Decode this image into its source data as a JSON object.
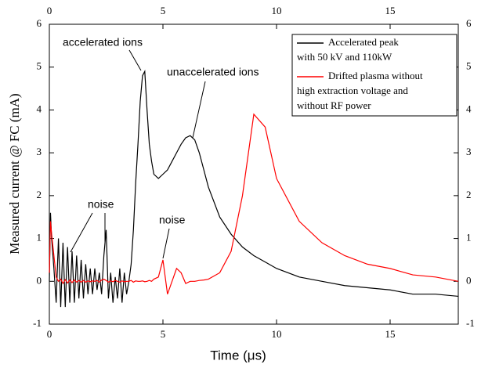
{
  "chart_data": {
    "type": "line",
    "xlabel": "Time (μs)",
    "ylabel": "Measured current @ FC (mA)",
    "xlim": [
      0,
      18
    ],
    "xticks": [
      0,
      5,
      10,
      15
    ],
    "ylim": [
      -1,
      6
    ],
    "yticks": [
      -1,
      0,
      1,
      2,
      3,
      4,
      5,
      6
    ],
    "legend": "top-right",
    "annotations": [
      "accelerated ions",
      "unaccelerated ions",
      "noise",
      "noise"
    ],
    "x": [
      0,
      0.05,
      0.1,
      0.2,
      0.3,
      0.4,
      0.5,
      0.6,
      0.7,
      0.8,
      0.9,
      1.0,
      1.1,
      1.2,
      1.3,
      1.4,
      1.5,
      1.6,
      1.7,
      1.8,
      1.9,
      2.0,
      2.1,
      2.2,
      2.3,
      2.4,
      2.5,
      2.6,
      2.7,
      2.8,
      2.9,
      3.0,
      3.1,
      3.2,
      3.3,
      3.4,
      3.5,
      3.6,
      3.7,
      3.8,
      3.9,
      4.0,
      4.1,
      4.2,
      4.3,
      4.4,
      4.5,
      4.6,
      4.8,
      5.0,
      5.2,
      5.4,
      5.6,
      5.8,
      6.0,
      6.2,
      6.4,
      6.6,
      6.8,
      7.0,
      7.5,
      8.0,
      8.5,
      9.0,
      9.5,
      10,
      11,
      12,
      13,
      14,
      15,
      16,
      17,
      18
    ],
    "series": [
      {
        "name": "Accelerated peak\nwith 50 kV and 110kW",
        "color": "#000000",
        "values": [
          0,
          1.6,
          1.0,
          0.3,
          -0.5,
          1.0,
          -0.6,
          0.9,
          -0.6,
          0.8,
          -0.5,
          0.7,
          -0.5,
          0.6,
          -0.4,
          0.5,
          -0.4,
          0.4,
          -0.3,
          0.3,
          -0.3,
          0.3,
          -0.2,
          0.2,
          -0.3,
          0.6,
          1.2,
          -0.4,
          0.2,
          -0.5,
          0.1,
          -0.4,
          0.3,
          -0.5,
          0.2,
          -0.3,
          0,
          0.4,
          1.2,
          2.3,
          3.2,
          4.2,
          4.8,
          4.9,
          4.0,
          3.2,
          2.8,
          2.5,
          2.4,
          2.5,
          2.6,
          2.8,
          3.0,
          3.2,
          3.35,
          3.4,
          3.3,
          3.0,
          2.6,
          2.2,
          1.5,
          1.1,
          0.8,
          0.6,
          0.45,
          0.3,
          0.1,
          0,
          -0.1,
          -0.15,
          -0.2,
          -0.3,
          -0.3,
          -0.35
        ]
      },
      {
        "name": "Drifted plasma without\nhigh extraction voltage and\nwithout RF power",
        "color": "#ff0000",
        "values": [
          0.2,
          1.4,
          1.1,
          0.6,
          0.1,
          0,
          0.05,
          -0.05,
          0.04,
          -0.04,
          0.03,
          -0.03,
          0.03,
          -0.02,
          0.02,
          -0.02,
          0.02,
          -0.02,
          0.01,
          -0.01,
          0.01,
          0,
          0.02,
          -0.02,
          0.03,
          0.05,
          0.02,
          -0.02,
          0.01,
          -0.01,
          0.02,
          0,
          -0.02,
          0.01,
          -0.01,
          0,
          0,
          0.02,
          -0.02,
          0.01,
          0,
          0,
          0.01,
          -0.01,
          0,
          0.02,
          0,
          0.05,
          0.1,
          0.5,
          -0.3,
          0,
          0.3,
          0.2,
          -0.05,
          0,
          0,
          0.02,
          0.03,
          0.05,
          0.2,
          0.7,
          2.0,
          3.9,
          3.6,
          2.4,
          1.4,
          0.9,
          0.6,
          0.4,
          0.3,
          0.15,
          0.1,
          0.0
        ]
      }
    ]
  }
}
